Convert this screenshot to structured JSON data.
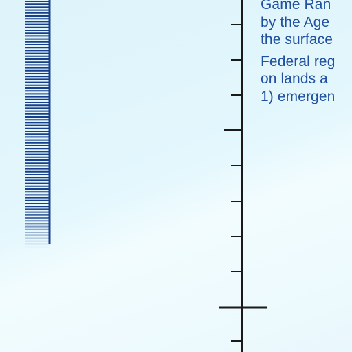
{
  "document": {
    "paragraph_1": [
      "Game Ran",
      "by the Age",
      "the surface"
    ],
    "paragraph_2": [
      "Federal reg",
      "on lands a",
      "1) emergen"
    ]
  },
  "colors": {
    "text": "#1f4f9e",
    "scale_lines": "#173f8a",
    "ruler": "#1a1a1a"
  }
}
